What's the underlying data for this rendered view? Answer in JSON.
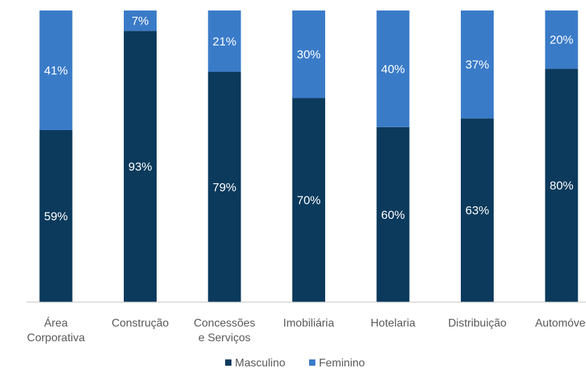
{
  "chart_data": {
    "type": "bar",
    "stacked": true,
    "percent": true,
    "categories": [
      [
        "Área",
        "Corporativa"
      ],
      [
        "Construção"
      ],
      [
        "Concessões",
        "e Serviços"
      ],
      [
        "Imobiliária"
      ],
      [
        "Hotelaria"
      ],
      [
        "Distribuição"
      ],
      [
        "Automóvel"
      ]
    ],
    "series": [
      {
        "name": "Masculino",
        "color": "#0b3a5c",
        "values": [
          59,
          93,
          79,
          70,
          60,
          63,
          80
        ]
      },
      {
        "name": "Feminino",
        "color": "#3a7bc8",
        "values": [
          41,
          7,
          21,
          30,
          40,
          37,
          20
        ]
      }
    ],
    "ylim": [
      0,
      100
    ],
    "grid": false,
    "legend_position": "bottom"
  }
}
